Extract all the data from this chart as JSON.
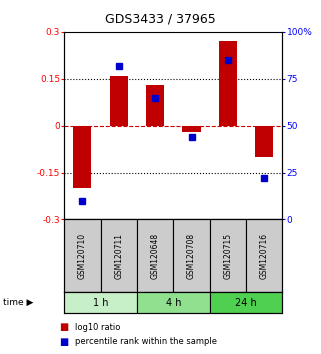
{
  "title": "GDS3433 / 37965",
  "samples": [
    "GSM120710",
    "GSM120711",
    "GSM120648",
    "GSM120708",
    "GSM120715",
    "GSM120716"
  ],
  "log10_ratio": [
    -0.2,
    0.16,
    0.13,
    -0.02,
    0.27,
    -0.1
  ],
  "percentile_rank": [
    10,
    82,
    65,
    44,
    85,
    22
  ],
  "time_groups": [
    {
      "label": "1 h",
      "indices": [
        0,
        1
      ],
      "color": "#c8f0c8"
    },
    {
      "label": "4 h",
      "indices": [
        2,
        3
      ],
      "color": "#90e090"
    },
    {
      "label": "24 h",
      "indices": [
        4,
        5
      ],
      "color": "#50d050"
    }
  ],
  "bar_color": "#c00000",
  "dot_color": "#0000cc",
  "ylim_left": [
    -0.3,
    0.3
  ],
  "ylim_right": [
    0,
    100
  ],
  "yticks_left": [
    -0.3,
    -0.15,
    0,
    0.15,
    0.3
  ],
  "ytick_labels_left": [
    "-0.3",
    "-0.15",
    "0",
    "0.15",
    "0.3"
  ],
  "yticks_right": [
    0,
    25,
    50,
    75,
    100
  ],
  "ytick_labels_right": [
    "0",
    "25",
    "50",
    "75",
    "100%"
  ],
  "hlines": [
    -0.15,
    0,
    0.15
  ],
  "hline_styles": [
    "dotted",
    "dashed",
    "dotted"
  ],
  "hline_colors": [
    "black",
    "#cc0000",
    "black"
  ],
  "sample_bg_color": "#cccccc",
  "legend_items": [
    {
      "label": "log10 ratio",
      "color": "#c00000"
    },
    {
      "label": "percentile rank within the sample",
      "color": "#0000cc"
    }
  ]
}
